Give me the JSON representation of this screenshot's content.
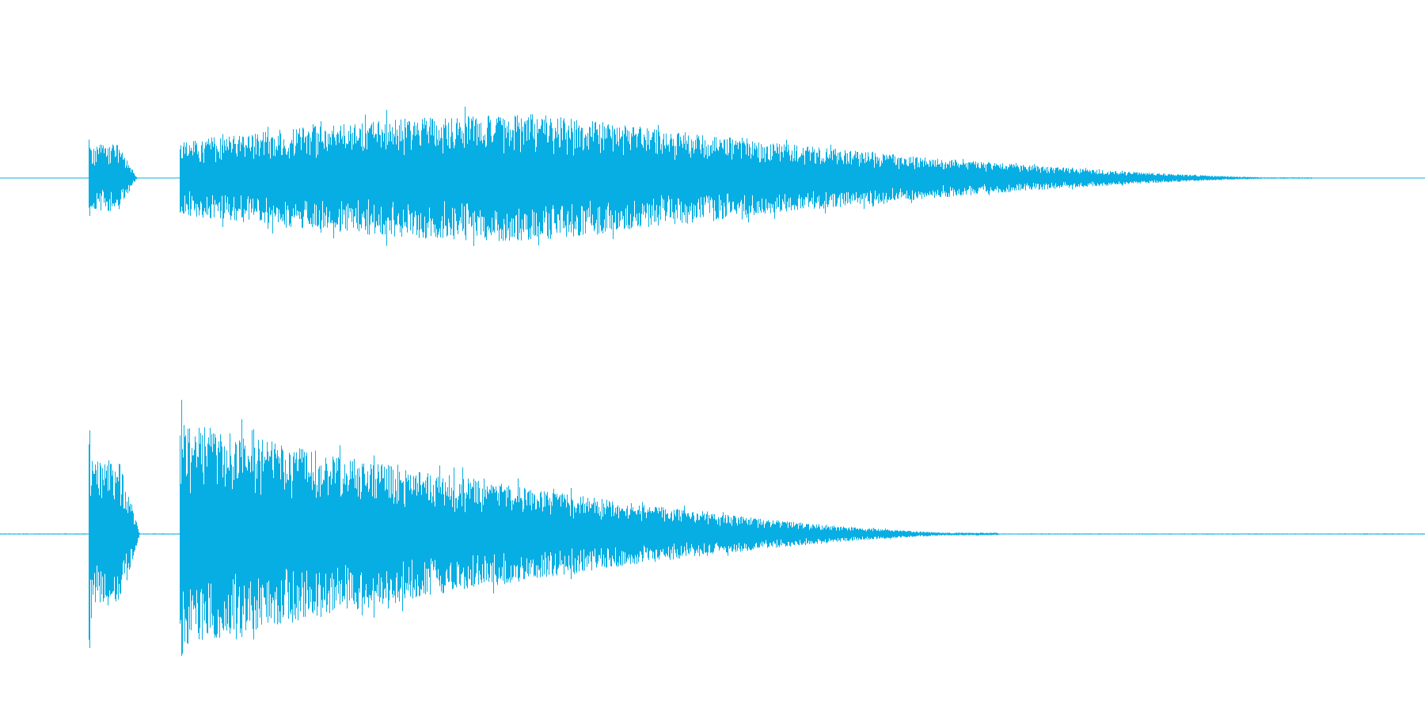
{
  "waveform": {
    "color": "#07aee3",
    "background": "#ffffff",
    "channels": [
      {
        "name": "",
        "clips": [
          {
            "start": 0.062,
            "end": 0.096,
            "attack": 0.001,
            "peak": 0.6,
            "decay": 0.02,
            "flat": 0.5
          },
          {
            "start": 0.126,
            "end": 0.92,
            "attack": 0.003,
            "peak": 0.55,
            "rise_to": 0.38,
            "peak_level": 0.95,
            "tail": 0.92
          }
        ]
      },
      {
        "name": "",
        "clips": [
          {
            "start": 0.062,
            "end": 0.098,
            "attack": 0.001,
            "peak": 1.0,
            "decay": 0.02,
            "flat": 0.55
          },
          {
            "start": 0.126,
            "end": 0.7,
            "attack": 0.002,
            "peak": 1.0,
            "rise_to": 0.12,
            "peak_level": 0.85,
            "tail": 0.7
          }
        ]
      }
    ]
  }
}
